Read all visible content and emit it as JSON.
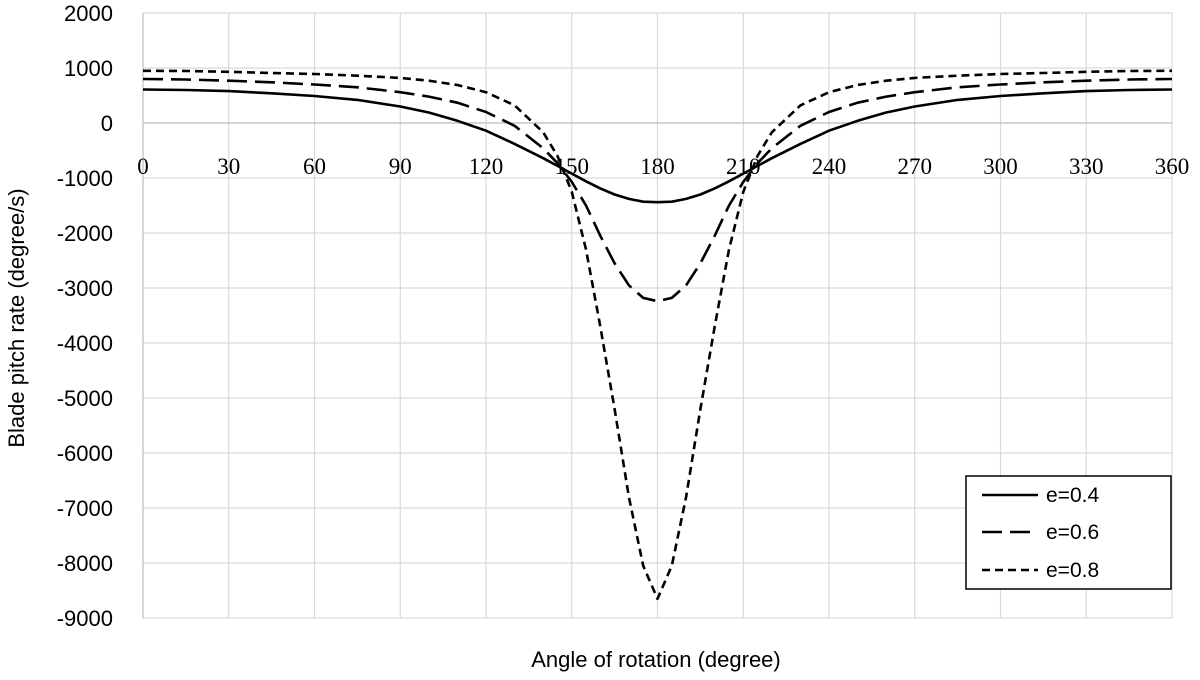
{
  "chart_data": {
    "type": "line",
    "xlabel": "Angle of rotation (degree)",
    "ylabel": "Blade pitch rate (degree/s)",
    "xlim": [
      0,
      360
    ],
    "ylim": [
      -9000,
      2000
    ],
    "x_ticks": [
      "0",
      "30",
      "60",
      "90",
      "120",
      "150",
      "180",
      "210",
      "240",
      "270",
      "300",
      "330",
      "360"
    ],
    "y_ticks": [
      "2000",
      "1000",
      "0",
      "-1000",
      "-2000",
      "-3000",
      "-4000",
      "-5000",
      "-6000",
      "-7000",
      "-8000",
      "-9000"
    ],
    "grid": true,
    "legend_position": "bottom-right",
    "x": [
      0,
      15,
      30,
      45,
      60,
      75,
      90,
      100,
      110,
      120,
      130,
      140,
      145,
      150,
      155,
      160,
      165,
      170,
      175,
      180,
      185,
      190,
      195,
      200,
      205,
      210,
      215,
      220,
      230,
      240,
      250,
      260,
      270,
      285,
      300,
      315,
      330,
      345,
      360
    ],
    "series": [
      {
        "name": "e=0.4",
        "style": "solid",
        "values": [
          610,
          600,
          580,
          540,
          490,
          420,
          300,
          190,
          40,
          -140,
          -380,
          -640,
          -780,
          -920,
          -1060,
          -1190,
          -1300,
          -1380,
          -1430,
          -1440,
          -1430,
          -1380,
          -1300,
          -1190,
          -1060,
          -920,
          -780,
          -640,
          -380,
          -140,
          40,
          190,
          300,
          420,
          490,
          540,
          580,
          600,
          610
        ]
      },
      {
        "name": "e=0.6",
        "style": "long-dash",
        "values": [
          800,
          790,
          770,
          740,
          700,
          650,
          560,
          480,
          370,
          200,
          -50,
          -460,
          -730,
          -1070,
          -1500,
          -2050,
          -2550,
          -2950,
          -3180,
          -3240,
          -3180,
          -2950,
          -2550,
          -2050,
          -1500,
          -1070,
          -730,
          -460,
          -50,
          200,
          370,
          480,
          560,
          650,
          700,
          740,
          770,
          790,
          800
        ]
      },
      {
        "name": "e=0.8",
        "style": "short-dash",
        "values": [
          950,
          945,
          930,
          910,
          890,
          860,
          820,
          770,
          690,
          560,
          320,
          -170,
          -600,
          -1250,
          -2300,
          -3700,
          -5200,
          -6800,
          -8050,
          -8650,
          -8050,
          -6800,
          -5200,
          -3700,
          -2300,
          -1250,
          -600,
          -170,
          320,
          560,
          690,
          770,
          820,
          860,
          890,
          910,
          930,
          945,
          950
        ]
      }
    ]
  }
}
